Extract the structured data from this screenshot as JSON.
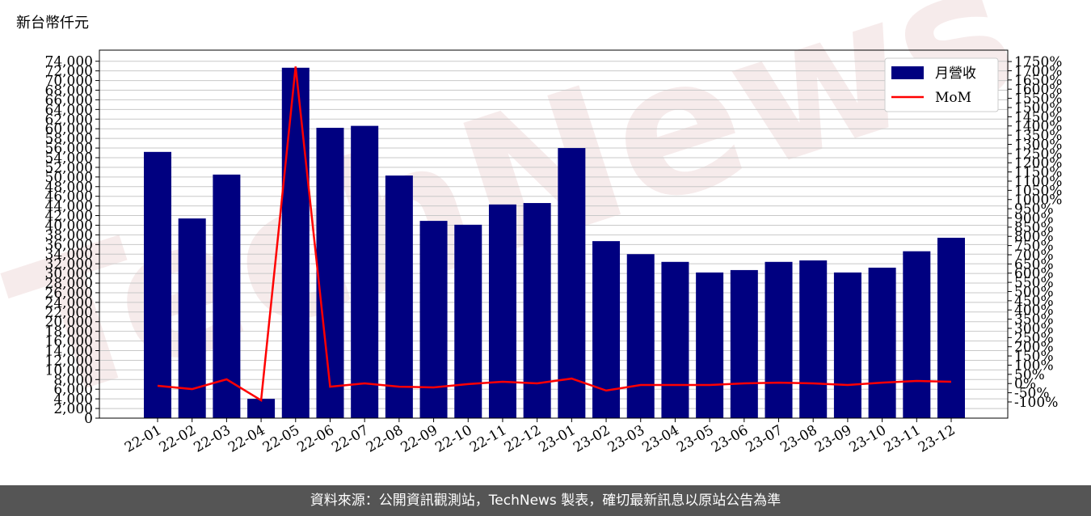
{
  "chart_data": {
    "type": "bar+line",
    "unit_label": "新台幣仟元",
    "source": "資料來源：公開資訊觀測站，TechNews 製表，確切最新訊息以原站公告為準",
    "watermark": "TechNews",
    "categories": [
      "22-01",
      "22-02",
      "22-03",
      "22-04",
      "22-05",
      "22-06",
      "22-07",
      "22-08",
      "22-09",
      "22-10",
      "22-11",
      "22-12",
      "23-01",
      "23-02",
      "23-03",
      "23-04",
      "23-05",
      "23-06",
      "23-07",
      "23-08",
      "23-09",
      "23-10",
      "23-11",
      "23-12"
    ],
    "series": [
      {
        "name": "月營收",
        "type": "bar",
        "color": "#000080",
        "values": [
          55200,
          41400,
          50500,
          4000,
          72650,
          60200,
          60600,
          50300,
          40900,
          40100,
          44300,
          44600,
          56000,
          36700,
          34000,
          32400,
          30200,
          30700,
          32400,
          32700,
          30200,
          31200,
          34600,
          37400
        ]
      },
      {
        "name": "MoM",
        "type": "line",
        "axis": "y2",
        "color": "#ff0000",
        "values": [
          -12,
          -30,
          23,
          -91,
          1723,
          -17,
          1,
          -17,
          -21,
          -3,
          10,
          1,
          27,
          -38,
          -8,
          -8,
          -8,
          1,
          5,
          1,
          -8,
          5,
          14,
          10
        ]
      }
    ],
    "ylim": [
      0,
      76300
    ],
    "y2lim": [
      -188,
      1812
    ],
    "legend": "upper right",
    "grid": true,
    "yticks": [
      0,
      {
        "value": 2000,
        "label": "2,000"
      },
      {
        "value": 4000,
        "label": "4,000"
      },
      {
        "value": 6000,
        "label": "6,000"
      },
      {
        "value": 8000,
        "label": "8,000"
      },
      {
        "value": 10000,
        "label": "10,000"
      },
      {
        "value": 12000,
        "label": "12,000"
      },
      {
        "value": 14000,
        "label": "14,000"
      },
      {
        "value": 16000,
        "label": "16,000"
      },
      {
        "value": 18000,
        "label": "18,000"
      },
      {
        "value": 20000,
        "label": "20,000"
      },
      {
        "value": 22000,
        "label": "22,000"
      },
      {
        "value": 24000,
        "label": "24,000"
      },
      {
        "value": 26000,
        "label": "26,000"
      },
      {
        "value": 28000,
        "label": "28,000"
      },
      {
        "value": 30000,
        "label": "30,000"
      },
      {
        "value": 32000,
        "label": "32,000"
      },
      {
        "value": 34000,
        "label": "34,000"
      },
      {
        "value": 36000,
        "label": "36,000"
      },
      {
        "value": 38000,
        "label": "38,000"
      },
      {
        "value": 40000,
        "label": "40,000"
      },
      {
        "value": 42000,
        "label": "42,000"
      },
      {
        "value": 44000,
        "label": "44,000"
      },
      {
        "value": 46000,
        "label": "46,000"
      },
      {
        "value": 48000,
        "label": "48,000"
      },
      {
        "value": 50000,
        "label": "50,000"
      },
      {
        "value": 52000,
        "label": "52,000"
      },
      {
        "value": 54000,
        "label": "54,000"
      },
      {
        "value": 56000,
        "label": "56,000"
      },
      {
        "value": 58000,
        "label": "58,000"
      },
      {
        "value": 60000,
        "label": "60,000"
      },
      {
        "value": 62000,
        "label": "62,000"
      },
      {
        "value": 64000,
        "label": "64,000"
      },
      {
        "value": 66000,
        "label": "66,000"
      },
      {
        "value": 68000,
        "label": "68,000"
      },
      {
        "value": 70000,
        "label": "70,000"
      },
      {
        "value": 72000,
        "label": "72,000"
      },
      {
        "value": 74000,
        "label": "74,000"
      }
    ],
    "y2ticks": [
      {
        "value": -100,
        "label": "-100%"
      },
      {
        "value": -50,
        "label": "-50%"
      },
      {
        "value": 0,
        "label": "0%"
      },
      {
        "value": 50,
        "label": "50%"
      },
      {
        "value": 100,
        "label": "100%"
      },
      {
        "value": 150,
        "label": "150%"
      },
      {
        "value": 200,
        "label": "200%"
      },
      {
        "value": 250,
        "label": "250%"
      },
      {
        "value": 300,
        "label": "300%"
      },
      {
        "value": 350,
        "label": "350%"
      },
      {
        "value": 400,
        "label": "400%"
      },
      {
        "value": 450,
        "label": "450%"
      },
      {
        "value": 500,
        "label": "500%"
      },
      {
        "value": 550,
        "label": "550%"
      },
      {
        "value": 600,
        "label": "600%"
      },
      {
        "value": 650,
        "label": "650%"
      },
      {
        "value": 700,
        "label": "700%"
      },
      {
        "value": 750,
        "label": "750%"
      },
      {
        "value": 800,
        "label": "800%"
      },
      {
        "value": 850,
        "label": "850%"
      },
      {
        "value": 900,
        "label": "900%"
      },
      {
        "value": 950,
        "label": "950%"
      },
      {
        "value": 1000,
        "label": "1000%"
      },
      {
        "value": 1050,
        "label": "1050%"
      },
      {
        "value": 1100,
        "label": "1100%"
      },
      {
        "value": 1150,
        "label": "1150%"
      },
      {
        "value": 1200,
        "label": "1200%"
      },
      {
        "value": 1250,
        "label": "1250%"
      },
      {
        "value": 1300,
        "label": "1300%"
      },
      {
        "value": 1350,
        "label": "1350%"
      },
      {
        "value": 1400,
        "label": "1400%"
      },
      {
        "value": 1450,
        "label": "1450%"
      },
      {
        "value": 1500,
        "label": "1500%"
      },
      {
        "value": 1550,
        "label": "1550%"
      },
      {
        "value": 1600,
        "label": "1600%"
      },
      {
        "value": 1650,
        "label": "1650%"
      },
      {
        "value": 1700,
        "label": "1700%"
      },
      {
        "value": 1750,
        "label": "1750%"
      }
    ]
  }
}
